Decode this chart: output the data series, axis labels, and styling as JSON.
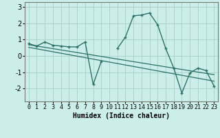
{
  "xlabel": "Humidex (Indice chaleur)",
  "background_color": "#cceee8",
  "grid_color": "#aad4cc",
  "line_color": "#2d7068",
  "zigzag_x": [
    0,
    1,
    2,
    3,
    4,
    5,
    6,
    7,
    8,
    9,
    10,
    11,
    12,
    13,
    14,
    15,
    16,
    17,
    18,
    19,
    20,
    21,
    22,
    23
  ],
  "zigzag_y": [
    0.75,
    0.6,
    0.85,
    0.65,
    0.6,
    0.55,
    0.55,
    0.85,
    -1.75,
    -0.35,
    null,
    0.45,
    1.15,
    2.45,
    2.5,
    2.62,
    1.9,
    0.45,
    -0.75,
    -2.28,
    -1.05,
    -0.75,
    -0.9,
    -1.85
  ],
  "reg_line1": {
    "x": [
      0,
      23
    ],
    "y": [
      0.68,
      -1.15
    ]
  },
  "reg_line2": {
    "x": [
      0,
      23
    ],
    "y": [
      0.52,
      -1.55
    ]
  },
  "ylim": [
    -2.8,
    3.3
  ],
  "xlim": [
    -0.5,
    23.5
  ],
  "yticks": [
    -2,
    -1,
    0,
    1,
    2,
    3
  ],
  "xticks": [
    0,
    1,
    2,
    3,
    4,
    5,
    6,
    7,
    8,
    9,
    10,
    11,
    12,
    13,
    14,
    15,
    16,
    17,
    18,
    19,
    20,
    21,
    22,
    23
  ],
  "tick_fontsize": 6,
  "xlabel_fontsize": 7
}
